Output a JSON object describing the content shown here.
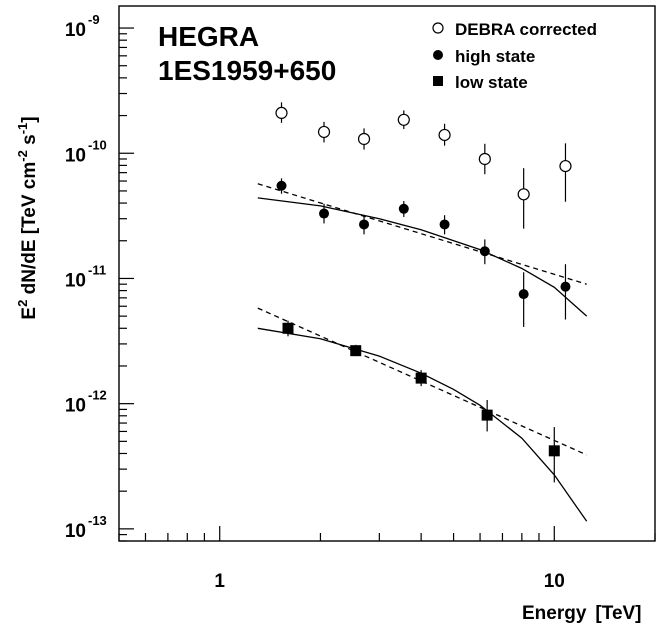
{
  "chart_data": {
    "type": "scatter",
    "title": "HEGRA",
    "subtitle": "1ES1959+650",
    "xlabel": "Energy",
    "xlabel_unit": "[TeV]",
    "ylabel": "E^2 dN/dE  [TeV cm^-2 s^-1]",
    "ylabel_parts": {
      "e": "E",
      "sq": "2",
      "mid": " dN/dE  [TeV cm",
      "exp1": "-2",
      "s": " s",
      "exp2": "-1",
      "end": "]"
    },
    "x_scale": "log",
    "y_scale": "log",
    "xlim": [
      0.5,
      20
    ],
    "ylim": [
      8e-14,
      1.5e-09
    ],
    "x_ticks": [
      {
        "value": 1,
        "label": "1"
      },
      {
        "value": 10,
        "label": "10"
      }
    ],
    "y_ticks": [
      {
        "value": 1e-13,
        "base": "10",
        "exp": "-13"
      },
      {
        "value": 1e-12,
        "base": "10",
        "exp": "-12"
      },
      {
        "value": 1e-11,
        "base": "10",
        "exp": "-11"
      },
      {
        "value": 1e-10,
        "base": "10",
        "exp": "-10"
      },
      {
        "value": 1e-09,
        "base": "10",
        "exp": "-9"
      }
    ],
    "legend_position": "top-right",
    "series": [
      {
        "name": "DEBRA corrected",
        "marker": "open-circle",
        "points": [
          {
            "x": 1.53,
            "y": 2.1e-10,
            "lo": 1.75e-10,
            "hi": 2.55e-10
          },
          {
            "x": 2.05,
            "y": 1.48e-10,
            "lo": 1.22e-10,
            "hi": 1.78e-10
          },
          {
            "x": 2.7,
            "y": 1.3e-10,
            "lo": 1.07e-10,
            "hi": 1.58e-10
          },
          {
            "x": 3.55,
            "y": 1.85e-10,
            "lo": 1.56e-10,
            "hi": 2.2e-10
          },
          {
            "x": 4.7,
            "y": 1.4e-10,
            "lo": 1.15e-10,
            "hi": 1.72e-10
          },
          {
            "x": 6.2,
            "y": 9e-11,
            "lo": 6.8e-11,
            "hi": 1.19e-10
          },
          {
            "x": 8.1,
            "y": 4.7e-11,
            "lo": 2.5e-11,
            "hi": 7.6e-11
          },
          {
            "x": 10.8,
            "y": 7.9e-11,
            "lo": 4.1e-11,
            "hi": 1.2e-10
          }
        ]
      },
      {
        "name": "high state",
        "marker": "filled-circle",
        "points": [
          {
            "x": 1.53,
            "y": 5.5e-11,
            "lo": 4.75e-11,
            "hi": 6.3e-11
          },
          {
            "x": 2.05,
            "y": 3.3e-11,
            "lo": 2.75e-11,
            "hi": 3.95e-11
          },
          {
            "x": 2.7,
            "y": 2.7e-11,
            "lo": 2.25e-11,
            "hi": 3.2e-11
          },
          {
            "x": 3.55,
            "y": 3.6e-11,
            "lo": 3.1e-11,
            "hi": 4.15e-11
          },
          {
            "x": 4.7,
            "y": 2.7e-11,
            "lo": 2.25e-11,
            "hi": 3.2e-11
          },
          {
            "x": 6.2,
            "y": 1.65e-11,
            "lo": 1.3e-11,
            "hi": 2.05e-11
          },
          {
            "x": 8.1,
            "y": 7.5e-12,
            "lo": 4.1e-12,
            "hi": 1.12e-11
          },
          {
            "x": 10.8,
            "y": 8.6e-12,
            "lo": 4.7e-12,
            "hi": 1.3e-11
          }
        ],
        "fits": [
          {
            "style": "solid",
            "x": [
              1.3,
              2,
              3,
              4,
              6,
              8,
              10,
              12.5
            ],
            "y": [
              4.4e-11,
              3.8e-11,
              3e-11,
              2.45e-11,
              1.7e-11,
              1.2e-11,
              8.5e-12,
              5e-12
            ]
          },
          {
            "style": "dashed",
            "x": [
              1.3,
              12.5
            ],
            "y": [
              5.7e-11,
              9e-12
            ]
          }
        ]
      },
      {
        "name": "low state",
        "marker": "filled-square",
        "points": [
          {
            "x": 1.6,
            "y": 4e-12,
            "lo": 3.45e-12,
            "hi": 4.6e-12
          },
          {
            "x": 2.55,
            "y": 2.65e-12,
            "lo": 2.4e-12,
            "hi": 2.95e-12
          },
          {
            "x": 4.0,
            "y": 1.6e-12,
            "lo": 1.38e-12,
            "hi": 1.85e-12
          },
          {
            "x": 6.3,
            "y": 8.1e-13,
            "lo": 6e-13,
            "hi": 1.07e-12
          },
          {
            "x": 10.0,
            "y": 4.2e-13,
            "lo": 2.35e-13,
            "hi": 6.5e-13
          }
        ],
        "fits": [
          {
            "style": "solid",
            "x": [
              1.3,
              2,
              3,
              4,
              5,
              6,
              8,
              10,
              12.5
            ],
            "y": [
              4e-12,
              3.3e-12,
              2.4e-12,
              1.75e-12,
              1.3e-12,
              9.7e-13,
              5.3e-13,
              2.7e-13,
              1.15e-13
            ]
          },
          {
            "style": "dashed",
            "x": [
              1.3,
              12.5
            ],
            "y": [
              5.8e-12,
              3.9e-13
            ]
          }
        ]
      }
    ]
  }
}
